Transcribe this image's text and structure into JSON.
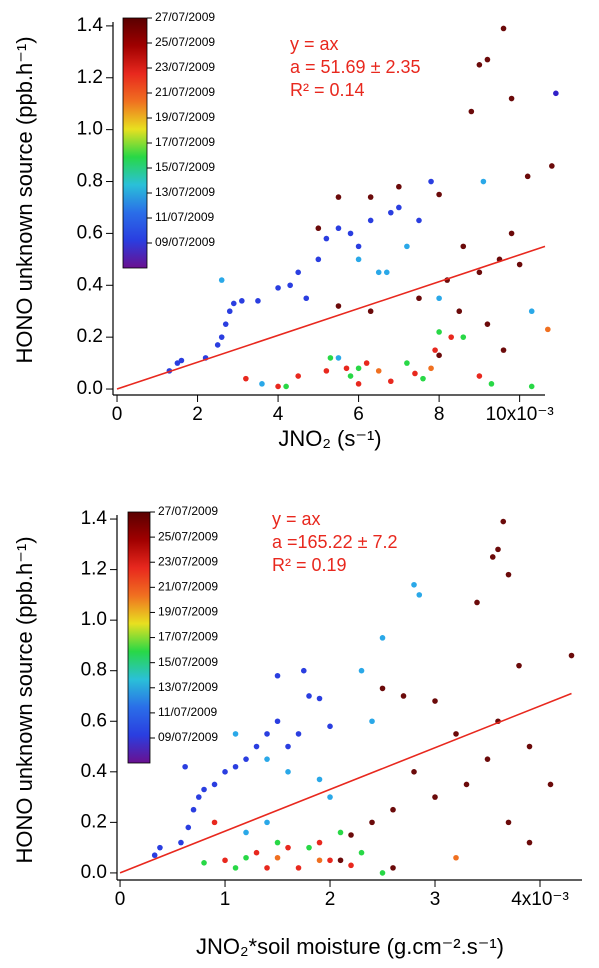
{
  "chart_data": [
    {
      "type": "scatter",
      "xlabel": "JNO₂ (s⁻¹)",
      "ylabel": "HONO unknown source (ppb.h⁻¹)",
      "annotations": [
        "y = ax",
        "a = 51.69 ± 2.35",
        "R² = 0.14"
      ],
      "xlim": [
        -0.1,
        10.63
      ],
      "ylim": [
        -0.023,
        1.415
      ],
      "xticks": [
        0,
        2,
        4,
        6,
        8,
        {
          "value": 10,
          "label": "10x10⁻³"
        }
      ],
      "yticks": [
        {
          "value": 0,
          "label": "0.0"
        },
        {
          "value": 0.2,
          "label": "0.2"
        },
        {
          "value": 0.4,
          "label": "0.4"
        },
        {
          "value": 0.6,
          "label": "0.6"
        },
        {
          "value": 0.8,
          "label": "0.8"
        },
        {
          "value": 1.0,
          "label": "1.0"
        },
        {
          "value": 1.2,
          "label": "1.2"
        },
        {
          "value": 1.4,
          "label": "1.4"
        }
      ],
      "x": [
        1.3,
        1.5,
        1.6,
        2.2,
        2.5,
        2.6,
        2.7,
        2.8,
        2.9,
        3.1,
        3.5,
        4.0,
        4.3,
        4.5,
        4.7,
        5.0,
        5.2,
        5.5,
        5.8,
        6.0,
        6.3,
        6.8,
        7.0,
        7.5,
        7.8,
        2.6,
        3.6,
        5.5,
        6.0,
        6.5,
        6.7,
        7.2,
        8.0,
        10.3,
        9.1,
        5.0,
        5.5,
        6.3,
        7.0,
        8.0,
        8.6,
        8.8,
        9.0,
        9.2,
        9.6,
        9.8,
        10.2,
        10.8,
        9.5,
        9.0,
        8.2,
        7.5,
        6.3,
        5.5,
        8.5,
        9.2,
        9.6,
        10.0,
        9.8,
        8.0,
        3.2,
        4.5,
        5.2,
        5.7,
        6.2,
        6.8,
        7.4,
        7.9,
        8.3,
        9.0,
        4.0,
        6.0,
        4.2,
        5.3,
        6.0,
        7.2,
        8.0,
        8.6,
        9.3,
        10.3,
        5.8,
        7.6,
        10.7,
        6.5,
        7.8,
        10.9
      ],
      "values": [
        0.07,
        0.1,
        0.11,
        0.12,
        0.17,
        0.2,
        0.25,
        0.3,
        0.33,
        0.34,
        0.34,
        0.39,
        0.4,
        0.45,
        0.35,
        0.5,
        0.58,
        0.62,
        0.6,
        0.55,
        0.65,
        0.68,
        0.7,
        0.65,
        0.8,
        0.42,
        0.02,
        0.12,
        0.5,
        0.45,
        0.45,
        0.55,
        0.35,
        0.3,
        0.8,
        0.62,
        0.74,
        0.74,
        0.78,
        0.75,
        0.55,
        1.07,
        1.25,
        1.27,
        1.39,
        1.12,
        0.82,
        0.86,
        0.5,
        0.45,
        0.42,
        0.35,
        0.3,
        0.32,
        0.3,
        0.25,
        0.15,
        0.48,
        0.6,
        0.13,
        0.04,
        0.05,
        0.07,
        0.08,
        0.1,
        0.03,
        0.06,
        0.15,
        0.2,
        0.05,
        0.01,
        0.02,
        0.01,
        0.12,
        0.08,
        0.1,
        0.22,
        0.2,
        0.02,
        0.01,
        0.05,
        0.04,
        0.23,
        0.07,
        0.08,
        1.14
      ],
      "point_colors": [
        "#2a3ee0",
        "#2a3ee0",
        "#2a3ee0",
        "#2a3ee0",
        "#2a3ee0",
        "#2a3ee0",
        "#2a3ee0",
        "#2a3ee0",
        "#2a3ee0",
        "#2a3ee0",
        "#2a3ee0",
        "#2a3ee0",
        "#2a3ee0",
        "#2a3ee0",
        "#2a3ee0",
        "#2a3ee0",
        "#2a3ee0",
        "#2a3ee0",
        "#2a3ee0",
        "#2a3ee0",
        "#2a3ee0",
        "#2a3ee0",
        "#2a3ee0",
        "#2a3ee0",
        "#2a3ee0",
        "#2aa8e8",
        "#2aa8e8",
        "#2aa8e8",
        "#2aa8e8",
        "#2aa8e8",
        "#2aa8e8",
        "#2aa8e8",
        "#2aa8e8",
        "#2aa8e8",
        "#2aa8e8",
        "#6b0a0a",
        "#6b0a0a",
        "#6b0a0a",
        "#6b0a0a",
        "#6b0a0a",
        "#6b0a0a",
        "#6b0a0a",
        "#6b0a0a",
        "#6b0a0a",
        "#6b0a0a",
        "#6b0a0a",
        "#6b0a0a",
        "#6b0a0a",
        "#6b0a0a",
        "#6b0a0a",
        "#6b0a0a",
        "#6b0a0a",
        "#6b0a0a",
        "#6b0a0a",
        "#6b0a0a",
        "#6b0a0a",
        "#6b0a0a",
        "#6b0a0a",
        "#6b0a0a",
        "#6b0a0a",
        "#e8281e",
        "#e8281e",
        "#e8281e",
        "#e8281e",
        "#e8281e",
        "#e8281e",
        "#e8281e",
        "#e8281e",
        "#e8281e",
        "#e8281e",
        "#e8281e",
        "#e8281e",
        "#28d846",
        "#28d846",
        "#28d846",
        "#28d846",
        "#28d846",
        "#28d846",
        "#28d846",
        "#28d846",
        "#28d846",
        "#28d846",
        "#f07020",
        "#f07020",
        "#f07020",
        "#3020c8"
      ],
      "fit_line": {
        "x": [
          0,
          10.63
        ],
        "y": [
          0,
          0.55
        ],
        "color": "#e8281e"
      },
      "colorbar": {
        "labels": [
          "27/07/2009",
          "25/07/2009",
          "23/07/2009",
          "21/07/2009",
          "19/07/2009",
          "17/07/2009",
          "15/07/2009",
          "13/07/2009",
          "11/07/2009",
          "09/07/2009"
        ],
        "colors": [
          "#5a0000",
          "#a00000",
          "#e8281e",
          "#f07020",
          "#e8e020",
          "#28d846",
          "#2ac0d8",
          "#2a6ee8",
          "#2a3ee0",
          "#6a1090"
        ]
      }
    },
    {
      "type": "scatter",
      "xlabel": "JNO₂*soil moisture (g.cm⁻².s⁻¹)",
      "ylabel": "HONO unknown source (ppb.h⁻¹)",
      "annotations": [
        "y = ax",
        "a =165.22 ± 7.2",
        "R² = 0.19"
      ],
      "xlim": [
        -0.029,
        4.4
      ],
      "ylim": [
        -0.028,
        1.416
      ],
      "xticks": [
        0,
        1,
        2,
        3,
        {
          "value": 4,
          "label": "4x10⁻³"
        }
      ],
      "yticks": [
        {
          "value": 0,
          "label": "0.0"
        },
        {
          "value": 0.2,
          "label": "0.2"
        },
        {
          "value": 0.4,
          "label": "0.4"
        },
        {
          "value": 0.6,
          "label": "0.6"
        },
        {
          "value": 0.8,
          "label": "0.8"
        },
        {
          "value": 1.0,
          "label": "1.0"
        },
        {
          "value": 1.2,
          "label": "1.2"
        },
        {
          "value": 1.4,
          "label": "1.4"
        }
      ],
      "x": [
        0.33,
        0.38,
        0.58,
        0.65,
        0.7,
        0.75,
        0.8,
        0.9,
        1.0,
        1.1,
        1.2,
        1.3,
        1.4,
        1.5,
        1.6,
        1.7,
        1.8,
        1.9,
        2.0,
        0.62,
        1.5,
        1.75,
        1.1,
        1.4,
        1.6,
        1.9,
        2.0,
        1.2,
        1.4,
        2.4,
        2.5,
        2.8,
        2.85,
        2.3,
        2.5,
        2.7,
        3.0,
        3.2,
        3.4,
        3.55,
        3.6,
        3.65,
        3.7,
        3.8,
        4.3,
        3.9,
        3.5,
        3.3,
        3.0,
        2.6,
        2.4,
        2.2,
        3.7,
        3.9,
        4.1,
        3.6,
        2.8,
        2.1,
        2.6,
        1.0,
        1.3,
        1.6,
        1.9,
        2.0,
        1.7,
        2.2,
        0.9,
        1.4,
        0.8,
        1.1,
        1.5,
        1.8,
        2.3,
        2.5,
        1.2,
        2.1,
        3.2,
        1.5,
        1.9
      ],
      "values": [
        0.07,
        0.1,
        0.12,
        0.18,
        0.25,
        0.3,
        0.33,
        0.35,
        0.4,
        0.42,
        0.45,
        0.5,
        0.55,
        0.6,
        0.5,
        0.55,
        0.7,
        0.69,
        0.58,
        0.42,
        0.78,
        0.8,
        0.55,
        0.45,
        0.4,
        0.37,
        0.3,
        0.16,
        0.2,
        0.6,
        0.93,
        1.14,
        1.1,
        0.8,
        0.73,
        0.7,
        0.68,
        0.55,
        1.07,
        1.25,
        1.28,
        1.39,
        1.18,
        0.82,
        0.86,
        0.5,
        0.45,
        0.35,
        0.3,
        0.25,
        0.2,
        0.15,
        0.2,
        0.12,
        0.35,
        0.6,
        0.4,
        0.05,
        0.02,
        0.05,
        0.08,
        0.1,
        0.12,
        0.05,
        0.02,
        0.03,
        0.2,
        0.02,
        0.04,
        0.02,
        0.12,
        0.1,
        0.08,
        0.0,
        0.06,
        0.16,
        0.06,
        0.06,
        0.05
      ],
      "point_colors": [
        "#2a3ee0",
        "#2a3ee0",
        "#2a3ee0",
        "#2a3ee0",
        "#2a3ee0",
        "#2a3ee0",
        "#2a3ee0",
        "#2a3ee0",
        "#2a3ee0",
        "#2a3ee0",
        "#2a3ee0",
        "#2a3ee0",
        "#2a3ee0",
        "#2a3ee0",
        "#2a3ee0",
        "#2a3ee0",
        "#2a3ee0",
        "#2a3ee0",
        "#2a3ee0",
        "#2a3ee0",
        "#2a3ee0",
        "#2a3ee0",
        "#2aa8e8",
        "#2aa8e8",
        "#2aa8e8",
        "#2aa8e8",
        "#2aa8e8",
        "#2aa8e8",
        "#2aa8e8",
        "#2aa8e8",
        "#2aa8e8",
        "#2aa8e8",
        "#2aa8e8",
        "#2aa8e8",
        "#6b0a0a",
        "#6b0a0a",
        "#6b0a0a",
        "#6b0a0a",
        "#6b0a0a",
        "#6b0a0a",
        "#6b0a0a",
        "#6b0a0a",
        "#6b0a0a",
        "#6b0a0a",
        "#6b0a0a",
        "#6b0a0a",
        "#6b0a0a",
        "#6b0a0a",
        "#6b0a0a",
        "#6b0a0a",
        "#6b0a0a",
        "#6b0a0a",
        "#6b0a0a",
        "#6b0a0a",
        "#6b0a0a",
        "#6b0a0a",
        "#6b0a0a",
        "#6b0a0a",
        "#6b0a0a",
        "#e8281e",
        "#e8281e",
        "#e8281e",
        "#e8281e",
        "#e8281e",
        "#e8281e",
        "#e8281e",
        "#e8281e",
        "#e8281e",
        "#28d846",
        "#28d846",
        "#28d846",
        "#28d846",
        "#28d846",
        "#28d846",
        "#28d846",
        "#28d846",
        "#f07020",
        "#f07020",
        "#f07020"
      ],
      "fit_line": {
        "x": [
          0,
          4.3
        ],
        "y": [
          0,
          0.71
        ],
        "color": "#e8281e"
      },
      "colorbar": {
        "labels": [
          "27/07/2009",
          "25/07/2009",
          "23/07/2009",
          "21/07/2009",
          "19/07/2009",
          "17/07/2009",
          "15/07/2009",
          "13/07/2009",
          "11/07/2009",
          "09/07/2009"
        ],
        "colors": [
          "#5a0000",
          "#a00000",
          "#e8281e",
          "#f07020",
          "#e8e020",
          "#28d846",
          "#2ac0d8",
          "#2a6ee8",
          "#2a3ee0",
          "#6a1090"
        ]
      }
    }
  ]
}
